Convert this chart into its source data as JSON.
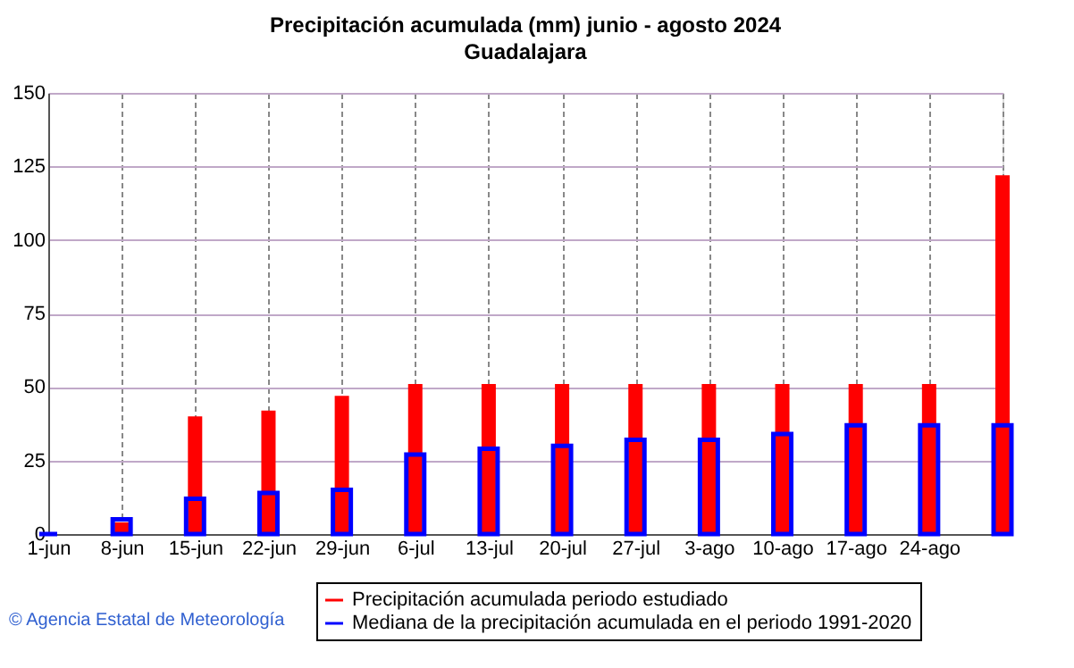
{
  "chart_data": {
    "type": "bar",
    "title": "Precipitación acumulada (mm) junio - agosto 2024",
    "subtitle": "Guadalajara",
    "categories": [
      "1-jun",
      "8-jun",
      "15-jun",
      "22-jun",
      "29-jun",
      "6-jul",
      "13-jul",
      "20-jul",
      "27-jul",
      "3-ago",
      "10-ago",
      "17-ago",
      "24-ago",
      null
    ],
    "series": [
      {
        "name": "Precipitación acumulada periodo estudiado",
        "color": "#ff0000",
        "values": [
          0,
          4,
          40,
          42,
          47,
          51,
          51,
          51,
          51,
          51,
          51,
          51,
          51,
          122
        ]
      },
      {
        "name": "Mediana de la precipitación acumulada en el periodo 1991-2020",
        "color": "#0000ff",
        "values": [
          0,
          5,
          12,
          14,
          15,
          27,
          29,
          30,
          32,
          32,
          34,
          37,
          37,
          37
        ]
      }
    ],
    "ylim": [
      0,
      150
    ],
    "yticks": [
      0,
      25,
      50,
      75,
      100,
      125,
      150
    ],
    "grid": true,
    "legend": "bottom",
    "annotations": [
      "© Agencia Estatal de Meteorología"
    ]
  }
}
